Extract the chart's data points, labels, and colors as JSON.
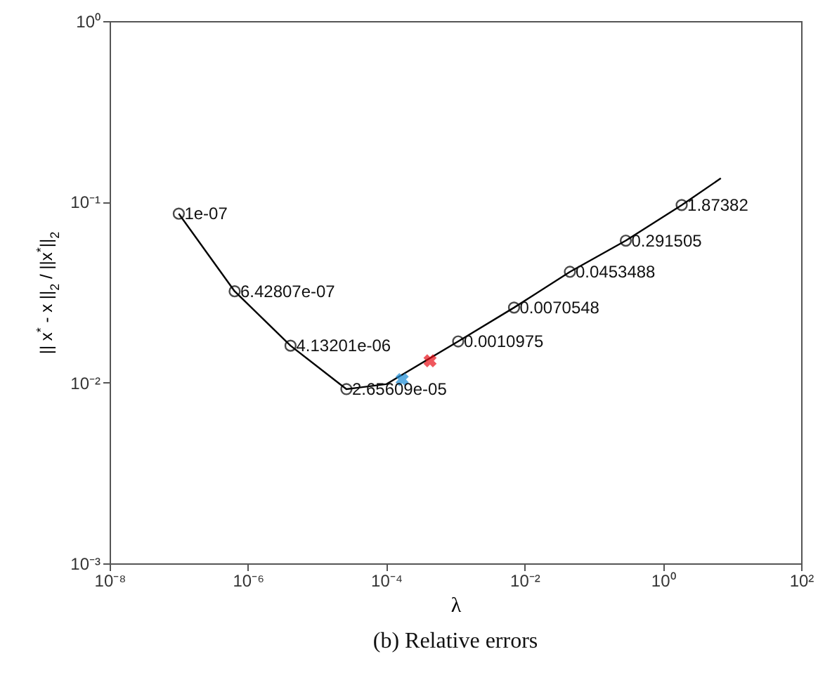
{
  "chart_data": {
    "type": "line",
    "title": "(b) Relative errors",
    "xlabel": "λ",
    "ylabel": "|| x$^{*}$ - x ||$_{2}$ / ||x$^{*}$||$_{2}$",
    "log": "xy",
    "xlim": [
      1e-08,
      100
    ],
    "ylim": [
      0.001,
      1
    ],
    "xticks": [
      {
        "value": 1e-08,
        "label": "10⁻⁸"
      },
      {
        "value": 1e-06,
        "label": "10⁻⁶"
      },
      {
        "value": 0.0001,
        "label": "10⁻⁴"
      },
      {
        "value": 0.01,
        "label": "10⁻²"
      },
      {
        "value": 1,
        "label": "10⁰"
      },
      {
        "value": 100,
        "label": "10²"
      }
    ],
    "yticks": [
      {
        "value": 0.001,
        "label": "10⁻³"
      },
      {
        "value": 0.01,
        "label": "10⁻²"
      },
      {
        "value": 0.1,
        "label": "10⁻¹"
      },
      {
        "value": 1,
        "label": "10⁰"
      }
    ],
    "series": [
      {
        "color": "#000000",
        "marker": "none",
        "line_style": "solid",
        "x": [
          1e-07,
          6.42807e-07,
          4.13201e-06,
          2.65609e-05,
          0.0001,
          0.0010975,
          0.0070548,
          0.0453488,
          0.291505,
          1.87382,
          6.9
        ],
        "values": [
          0.086,
          0.032,
          0.016,
          0.0092,
          0.0098,
          0.0169,
          0.026,
          0.041,
          0.061,
          0.096,
          0.135
        ]
      },
      {
        "type": "scatter",
        "color": "#000000",
        "marker": "circle",
        "x": [
          1e-07,
          6.42807e-07,
          4.13201e-06,
          2.65609e-05,
          0.0010975,
          0.0070548,
          0.0453488,
          0.291505,
          1.87382
        ],
        "values": [
          0.086,
          0.032,
          0.016,
          0.0092,
          0.0169,
          0.026,
          0.041,
          0.061,
          0.096
        ]
      },
      {
        "type": "scatter",
        "color": "#1a8ad4",
        "marker": "cross",
        "x": [
          0.00017
        ],
        "values": [
          0.0104
        ]
      },
      {
        "type": "scatter",
        "color": "#e81018",
        "marker": "cross",
        "x": [
          0.00043
        ],
        "values": [
          0.0132
        ]
      }
    ],
    "annotations": [
      {
        "text": "1e-07",
        "x": 1e-07,
        "y": 0.086
      },
      {
        "text": "6.42807e-07",
        "x": 6.42807e-07,
        "y": 0.032
      },
      {
        "text": "4.13201e-06",
        "x": 4.13201e-06,
        "y": 0.016
      },
      {
        "text": "2.65609e-05",
        "x": 2.65609e-05,
        "y": 0.0092
      },
      {
        "text": "0.0010975",
        "x": 0.0010975,
        "y": 0.0169
      },
      {
        "text": "0.0070548",
        "x": 0.0070548,
        "y": 0.026
      },
      {
        "text": "0.0453488",
        "x": 0.0453488,
        "y": 0.041
      },
      {
        "text": "0.291505",
        "x": 0.291505,
        "y": 0.061
      },
      {
        "text": "1.87382",
        "x": 1.87382,
        "y": 0.096
      }
    ]
  }
}
